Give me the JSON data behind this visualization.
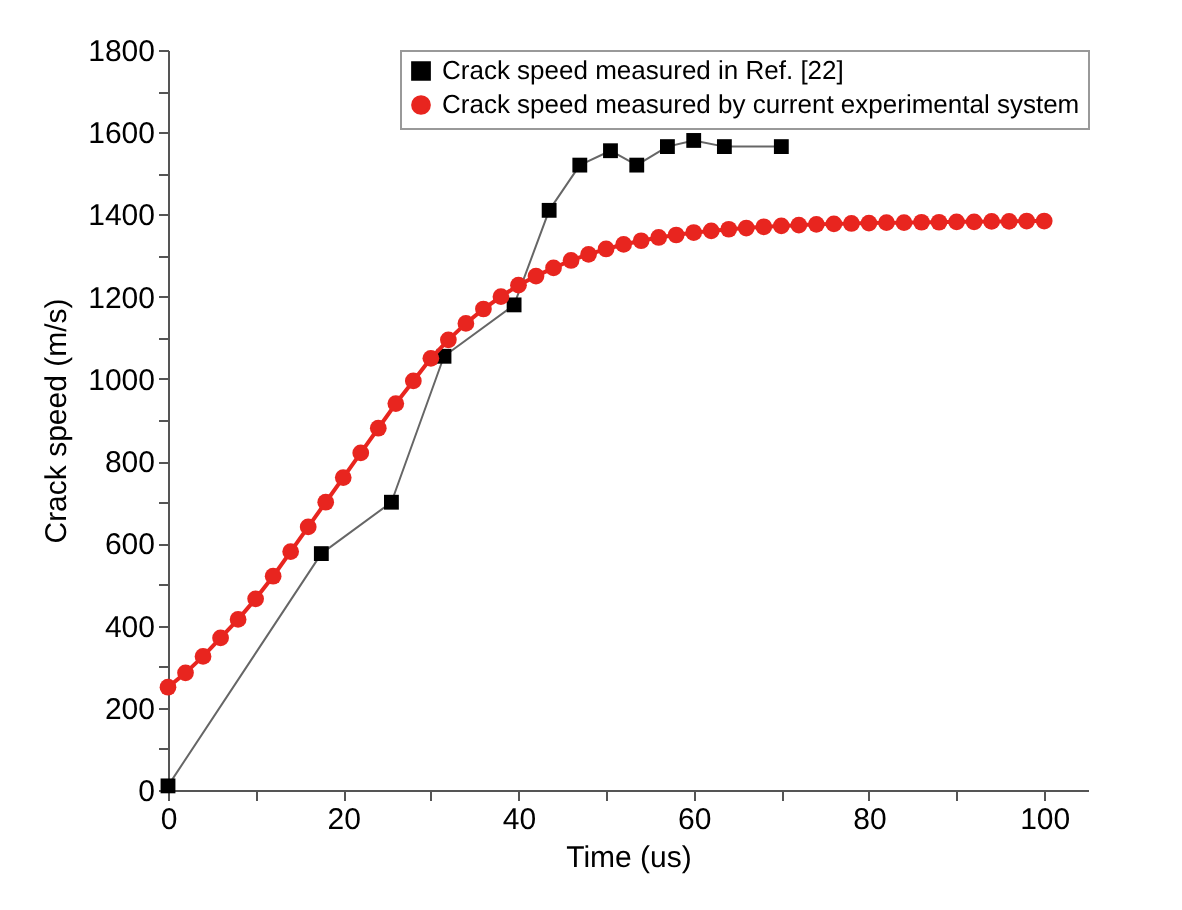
{
  "chart_data": {
    "type": "line",
    "xlabel": "Time (us)",
    "ylabel": "Crack speed (m/s)",
    "xlim": [
      0,
      105
    ],
    "ylim": [
      0,
      1800
    ],
    "xticks": [
      0,
      {
        "value": 10,
        "label": null
      },
      20,
      {
        "value": 30,
        "label": null
      },
      40,
      {
        "value": 50,
        "label": null
      },
      60,
      {
        "value": 70,
        "label": null
      },
      80,
      {
        "value": 90,
        "label": null
      },
      100
    ],
    "yticks": [
      0,
      {
        "value": 100,
        "label": null
      },
      200,
      {
        "value": 300,
        "label": null
      },
      400,
      {
        "value": 500,
        "label": null
      },
      600,
      {
        "value": 700,
        "label": null
      },
      800,
      {
        "value": 900,
        "label": null
      },
      1000,
      {
        "value": 1100,
        "label": null
      },
      1200,
      {
        "value": 1300,
        "label": null
      },
      1400,
      {
        "value": 1500,
        "label": null
      },
      1600,
      {
        "value": 1700,
        "label": null
      },
      1800
    ],
    "grid": false,
    "legend": "top right",
    "series": [
      {
        "name": "Crack speed measured in Ref. [22]",
        "color": "#000000",
        "marker": "square",
        "x": [
          0,
          17.5,
          25.5,
          31.5,
          39.5,
          43.5,
          47,
          50.5,
          53.5,
          57,
          60,
          63.5,
          70
        ],
        "values": [
          10,
          575,
          700,
          1055,
          1180,
          1410,
          1520,
          1555,
          1520,
          1565,
          1580,
          1565,
          1565
        ]
      },
      {
        "name": "Crack speed measured by current experimental system",
        "color": "#e8251f",
        "marker": "circle",
        "x": [
          0,
          2,
          4,
          6,
          8,
          10,
          12,
          14,
          16,
          18,
          20,
          22,
          24,
          26,
          28,
          30,
          32,
          34,
          36,
          38,
          40,
          42,
          44,
          46,
          48,
          50,
          52,
          54,
          56,
          58,
          60,
          62,
          64,
          66,
          68,
          70,
          72,
          74,
          76,
          78,
          80,
          82,
          84,
          86,
          88,
          90,
          92,
          94,
          96,
          98,
          100
        ],
        "values": [
          250,
          285,
          325,
          370,
          415,
          465,
          520,
          580,
          640,
          700,
          760,
          820,
          880,
          940,
          995,
          1050,
          1095,
          1135,
          1170,
          1200,
          1228,
          1250,
          1270,
          1288,
          1303,
          1316,
          1327,
          1336,
          1344,
          1350,
          1356,
          1360,
          1364,
          1367,
          1370,
          1372,
          1374,
          1376,
          1377,
          1378,
          1379,
          1380,
          1380,
          1381,
          1381,
          1382,
          1382,
          1383,
          1383,
          1384,
          1384
        ]
      }
    ]
  }
}
